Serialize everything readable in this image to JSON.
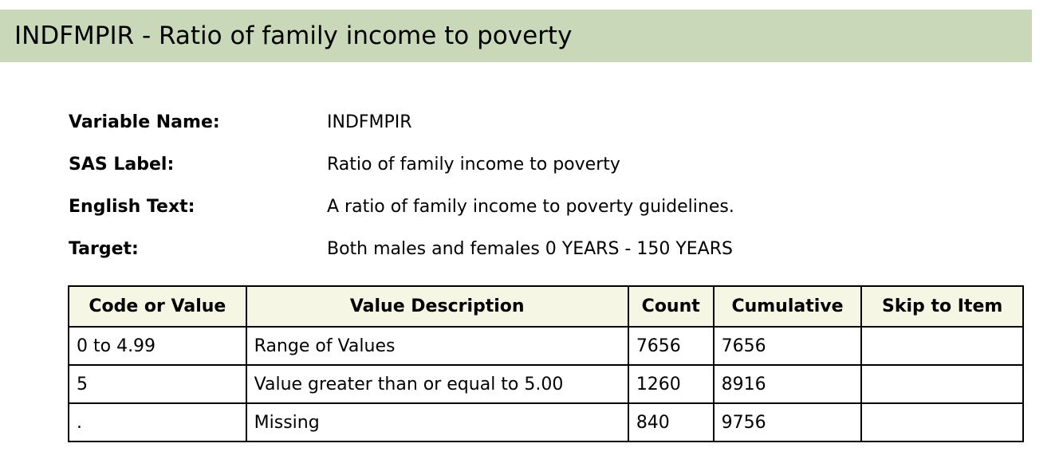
{
  "title": "INDFMPIR - Ratio of family income to poverty",
  "variable_info": [
    {
      "label": "Variable Name:",
      "value": "INDFMPIR"
    },
    {
      "label": "SAS Label:",
      "value": "Ratio of family income to poverty"
    },
    {
      "label": "English Text:",
      "value": "A ratio of family income to poverty guidelines."
    },
    {
      "label": "Target:",
      "value": "Both males and females 0 YEARS - 150 YEARS"
    }
  ],
  "table": {
    "headers": [
      "Code or Value",
      "Value Description",
      "Count",
      "Cumulative",
      "Skip to Item"
    ],
    "rows": [
      [
        "0 to 4.99",
        "Range of Values",
        "7656",
        "7656",
        ""
      ],
      [
        "5",
        "Value greater than or equal to 5.00",
        "1260",
        "8916",
        ""
      ],
      [
        ".",
        "Missing",
        "840",
        "9756",
        ""
      ]
    ]
  },
  "colors": {
    "title_bar_bg": "#c8d8b9",
    "table_header_bg": "#f5f6e4"
  }
}
